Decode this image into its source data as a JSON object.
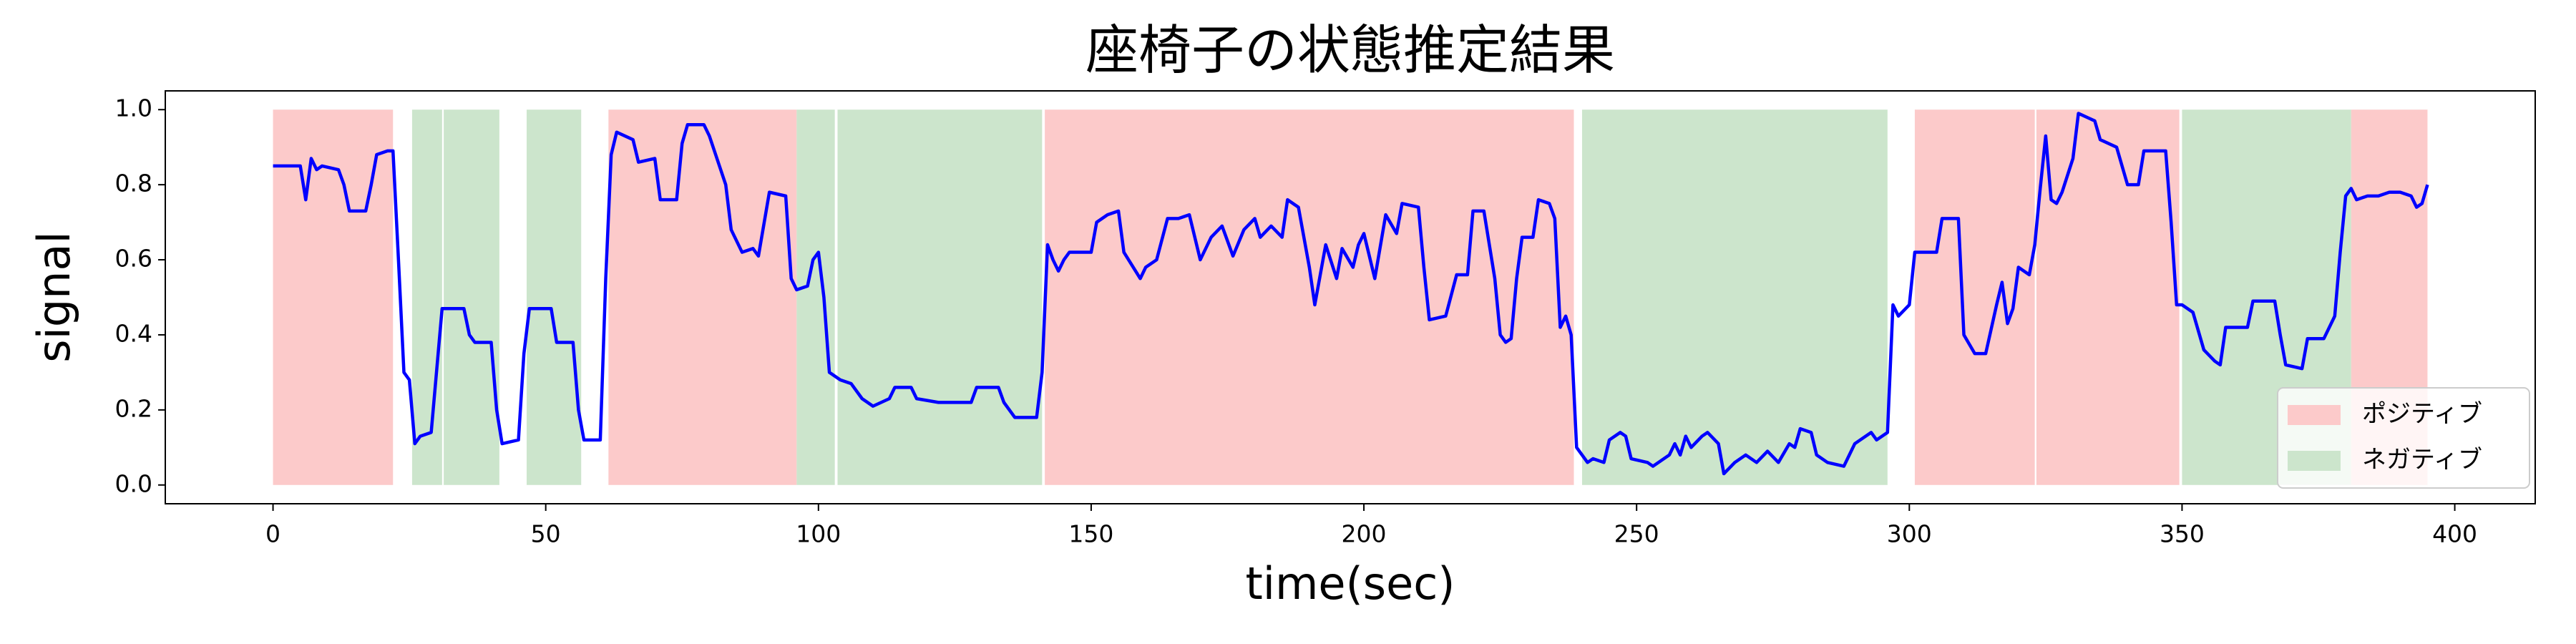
{
  "chart_data": {
    "type": "line",
    "title": "座椅子の状態推定結果",
    "x_label": "time(sec)",
    "y_label": "signal",
    "x": [
      0,
      5,
      6,
      7,
      8,
      9,
      12,
      13,
      14,
      17,
      18,
      19,
      21,
      22,
      23,
      24,
      25,
      26,
      27,
      29,
      31,
      35,
      36,
      37,
      40,
      41,
      42,
      45,
      46,
      47,
      51,
      52,
      55,
      56,
      57,
      60,
      61,
      62,
      63,
      66,
      67,
      70,
      71,
      74,
      75,
      76,
      79,
      80,
      83,
      84,
      86,
      88,
      89,
      91,
      94,
      95,
      96,
      98,
      99,
      100,
      101,
      102,
      104,
      106,
      108,
      110,
      113,
      114,
      117,
      118,
      122,
      128,
      129,
      133,
      134,
      136,
      140,
      141,
      142,
      143,
      144,
      145,
      146,
      150,
      151,
      153,
      155,
      156,
      159,
      160,
      162,
      164,
      166,
      168,
      170,
      172,
      174,
      176,
      178,
      180,
      181,
      183,
      185,
      186,
      188,
      190,
      191,
      193,
      195,
      196,
      198,
      199,
      200,
      202,
      204,
      206,
      207,
      210,
      211,
      212,
      215,
      217,
      219,
      220,
      222,
      224,
      225,
      226,
      227,
      228,
      229,
      231,
      232,
      234,
      235,
      236,
      237,
      238,
      239,
      240,
      241,
      242,
      244,
      245,
      247,
      248,
      249,
      252,
      253,
      256,
      257,
      258,
      259,
      260,
      262,
      263,
      265,
      266,
      268,
      270,
      272,
      274,
      276,
      278,
      279,
      280,
      282,
      283,
      285,
      288,
      290,
      291,
      293,
      294,
      296,
      297,
      298,
      300,
      301,
      305,
      306,
      309,
      310,
      312,
      314,
      316,
      317,
      318,
      319,
      320,
      322,
      323,
      324,
      325,
      326,
      327,
      328,
      330,
      331,
      334,
      335,
      338,
      340,
      342,
      343,
      347,
      348,
      349,
      350,
      352,
      354,
      356,
      357,
      358,
      362,
      363,
      367,
      368,
      369,
      372,
      373,
      376,
      378,
      379,
      380,
      381,
      382,
      384,
      386,
      388,
      390,
      392,
      393,
      394,
      395
    ],
    "values": [
      0.85,
      0.85,
      0.76,
      0.87,
      0.84,
      0.85,
      0.84,
      0.8,
      0.73,
      0.73,
      0.8,
      0.88,
      0.89,
      0.89,
      0.6,
      0.3,
      0.28,
      0.11,
      0.13,
      0.14,
      0.47,
      0.47,
      0.4,
      0.38,
      0.38,
      0.2,
      0.11,
      0.12,
      0.35,
      0.47,
      0.47,
      0.38,
      0.38,
      0.2,
      0.12,
      0.12,
      0.55,
      0.88,
      0.94,
      0.92,
      0.86,
      0.87,
      0.76,
      0.76,
      0.91,
      0.96,
      0.96,
      0.93,
      0.8,
      0.68,
      0.62,
      0.63,
      0.61,
      0.78,
      0.77,
      0.55,
      0.52,
      0.53,
      0.6,
      0.62,
      0.5,
      0.3,
      0.28,
      0.27,
      0.23,
      0.21,
      0.23,
      0.26,
      0.26,
      0.23,
      0.22,
      0.22,
      0.26,
      0.26,
      0.22,
      0.18,
      0.18,
      0.3,
      0.64,
      0.6,
      0.57,
      0.6,
      0.62,
      0.62,
      0.7,
      0.72,
      0.73,
      0.62,
      0.55,
      0.58,
      0.6,
      0.71,
      0.71,
      0.72,
      0.6,
      0.66,
      0.69,
      0.61,
      0.68,
      0.71,
      0.66,
      0.69,
      0.66,
      0.76,
      0.74,
      0.58,
      0.48,
      0.64,
      0.55,
      0.63,
      0.58,
      0.64,
      0.67,
      0.55,
      0.72,
      0.67,
      0.75,
      0.74,
      0.58,
      0.44,
      0.45,
      0.56,
      0.56,
      0.73,
      0.73,
      0.55,
      0.4,
      0.38,
      0.39,
      0.55,
      0.66,
      0.66,
      0.76,
      0.75,
      0.71,
      0.42,
      0.45,
      0.4,
      0.1,
      0.08,
      0.06,
      0.07,
      0.06,
      0.12,
      0.14,
      0.13,
      0.07,
      0.06,
      0.05,
      0.08,
      0.11,
      0.08,
      0.13,
      0.1,
      0.13,
      0.14,
      0.11,
      0.03,
      0.06,
      0.08,
      0.06,
      0.09,
      0.06,
      0.11,
      0.1,
      0.15,
      0.14,
      0.08,
      0.06,
      0.05,
      0.11,
      0.12,
      0.14,
      0.12,
      0.14,
      0.48,
      0.45,
      0.48,
      0.62,
      0.62,
      0.71,
      0.71,
      0.4,
      0.35,
      0.35,
      0.48,
      0.54,
      0.43,
      0.47,
      0.58,
      0.56,
      0.64,
      0.79,
      0.93,
      0.76,
      0.75,
      0.78,
      0.87,
      0.99,
      0.97,
      0.92,
      0.9,
      0.8,
      0.8,
      0.89,
      0.89,
      0.7,
      0.48,
      0.48,
      0.46,
      0.36,
      0.33,
      0.32,
      0.42,
      0.42,
      0.49,
      0.49,
      0.4,
      0.32,
      0.31,
      0.39,
      0.39,
      0.45,
      0.62,
      0.77,
      0.79,
      0.76,
      0.77,
      0.77,
      0.78,
      0.78,
      0.77,
      0.74,
      0.75,
      0.8
    ],
    "color": "#0000ff",
    "regions": [
      {
        "name": "ポジティブ",
        "color": "#fccaca",
        "y_range": [
          0,
          1
        ],
        "spans": [
          [
            0,
            22
          ],
          [
            61.5,
            96
          ],
          [
            141.5,
            238.5
          ],
          [
            301,
            323
          ],
          [
            323.3,
            349.5
          ],
          [
            381,
            395
          ]
        ]
      },
      {
        "name": "ネガティブ",
        "color": "#cce5cc",
        "y_range": [
          0,
          1
        ],
        "spans": [
          [
            25.5,
            31
          ],
          [
            31.3,
            41.5
          ],
          [
            46.5,
            56.5
          ],
          [
            96,
            103
          ],
          [
            103.5,
            141
          ],
          [
            240,
            296
          ],
          [
            350,
            381
          ]
        ]
      }
    ],
    "xlim": [
      -19.75,
      414.75
    ],
    "ylim": [
      -0.05,
      1.05
    ],
    "xticks": [
      0,
      50,
      100,
      150,
      200,
      250,
      300,
      350,
      400
    ],
    "yticks": [
      {
        "value": 0,
        "label": "0.0"
      },
      {
        "value": 0.2,
        "label": "0.2"
      },
      {
        "value": 0.4,
        "label": "0.4"
      },
      {
        "value": 0.6,
        "label": "0.6"
      },
      {
        "value": 0.8,
        "label": "0.8"
      },
      {
        "value": 1,
        "label": "1.0"
      }
    ],
    "grid": false,
    "legend": "lower right"
  }
}
